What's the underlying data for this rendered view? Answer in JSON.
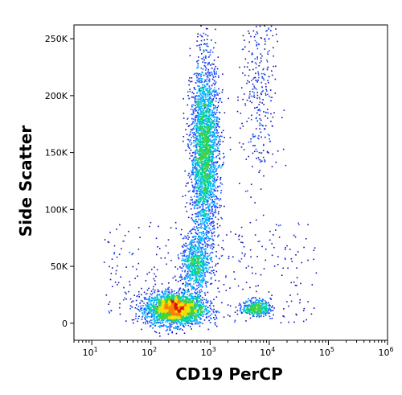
{
  "chart_data": {
    "type": "scatter",
    "subtype": "flow-cytometry density dot plot",
    "xlabel": "CD19 PerCP",
    "ylabel": "Side Scatter",
    "x_scale": "log",
    "xlim": [
      5,
      1000000
    ],
    "ylim": [
      -15000,
      262144
    ],
    "x_ticks": [
      {
        "base": "10",
        "exp": "1",
        "value": 10
      },
      {
        "base": "10",
        "exp": "2",
        "value": 100
      },
      {
        "base": "10",
        "exp": "3",
        "value": 1000
      },
      {
        "base": "10",
        "exp": "4",
        "value": 10000
      },
      {
        "base": "10",
        "exp": "5",
        "value": 100000
      },
      {
        "base": "10",
        "exp": "6",
        "value": 1000000
      }
    ],
    "y_ticks": [
      {
        "label": "0",
        "value": 0
      },
      {
        "label": "50K",
        "value": 50000
      },
      {
        "label": "100K",
        "value": 100000
      },
      {
        "label": "150K",
        "value": 150000
      },
      {
        "label": "200K",
        "value": 200000
      },
      {
        "label": "250K",
        "value": 250000
      }
    ],
    "populations": [
      {
        "x_center": 250,
        "y_center": 13000,
        "x_log_spread": 0.25,
        "y_spread": 7000,
        "count": 2600,
        "density_peak": "red"
      },
      {
        "x_center": 550,
        "y_center": 52000,
        "x_log_spread": 0.12,
        "y_spread": 12000,
        "count": 700,
        "density_peak": "green"
      },
      {
        "x_center": 800,
        "y_center": 150000,
        "x_log_spread": 0.12,
        "y_spread": 40000,
        "count": 2800,
        "density_peak": "green"
      },
      {
        "x_center": 6000,
        "y_center": 14000,
        "x_log_spread": 0.12,
        "y_spread": 3500,
        "count": 400,
        "density_peak": "cyan"
      },
      {
        "x_center": 6500,
        "y_center": 200000,
        "x_log_spread": 0.15,
        "y_spread": 45000,
        "count": 320,
        "density_peak": "blue"
      }
    ],
    "colormap": [
      "#1010b0",
      "#1a4dff",
      "#00b4ff",
      "#00d2a0",
      "#40d040",
      "#f0e000",
      "#ff8000",
      "#e01010"
    ],
    "grid": false
  }
}
